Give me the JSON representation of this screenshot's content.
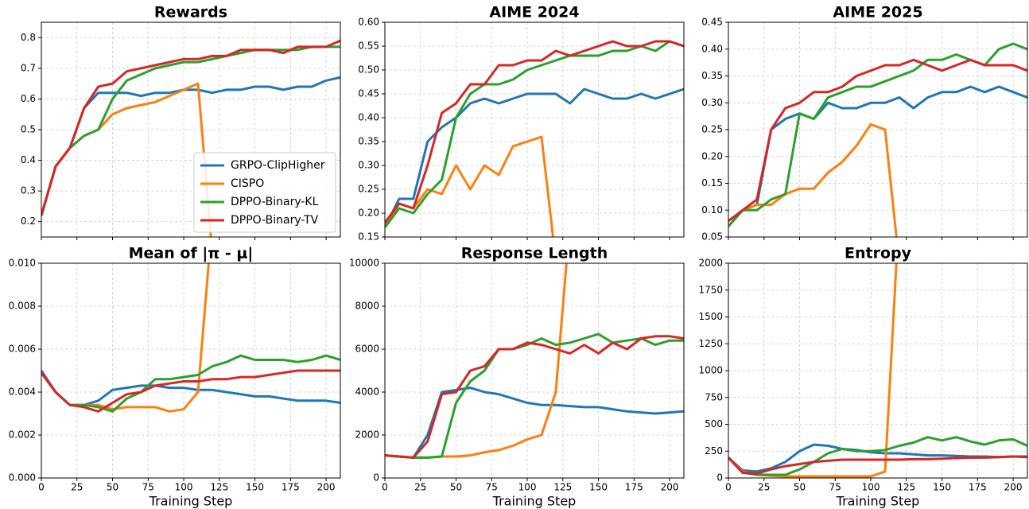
{
  "chart_data": [
    {
      "type": "line",
      "title": "Rewards",
      "xlabel_visible": false,
      "legend": "lower right",
      "x": [
        0,
        10,
        20,
        30,
        40,
        50,
        60,
        70,
        80,
        90,
        100,
        110,
        120,
        130,
        140,
        150,
        160,
        170,
        180,
        190,
        200,
        210
      ],
      "xlim": [
        0,
        210
      ],
      "xticks": [
        0,
        25,
        50,
        75,
        100,
        125,
        150,
        175,
        200
      ],
      "xtick_labels": false,
      "ylim": [
        0.15,
        0.85
      ],
      "yticks": [
        0.2,
        0.3,
        0.4,
        0.5,
        0.6,
        0.7,
        0.8
      ],
      "grid": true,
      "series": [
        {
          "name": "GRPO-ClipHigher",
          "color": "#1f77b4",
          "values": [
            0.22,
            0.38,
            0.44,
            0.57,
            0.62,
            0.62,
            0.62,
            0.61,
            0.62,
            0.62,
            0.63,
            0.63,
            0.62,
            0.63,
            0.63,
            0.64,
            0.64,
            0.63,
            0.64,
            0.64,
            0.66,
            0.67
          ]
        },
        {
          "name": "CISPO",
          "color": "#ff7f0e",
          "values": [
            0.22,
            0.38,
            0.44,
            0.48,
            0.5,
            0.55,
            0.57,
            0.58,
            0.59,
            0.61,
            0.63,
            0.65,
            0.1,
            null,
            null,
            null,
            null,
            null,
            null,
            null,
            null,
            null
          ]
        },
        {
          "name": "DPPO-Binary-KL",
          "color": "#2ca02c",
          "values": [
            0.22,
            0.38,
            0.44,
            0.48,
            0.5,
            0.6,
            0.66,
            0.68,
            0.7,
            0.71,
            0.72,
            0.72,
            0.73,
            0.74,
            0.75,
            0.76,
            0.76,
            0.76,
            0.76,
            0.77,
            0.77,
            0.77
          ]
        },
        {
          "name": "DPPO-Binary-TV",
          "color": "#d62728",
          "values": [
            0.22,
            0.38,
            0.44,
            0.57,
            0.64,
            0.65,
            0.69,
            0.7,
            0.71,
            0.72,
            0.73,
            0.73,
            0.74,
            0.74,
            0.76,
            0.76,
            0.76,
            0.75,
            0.77,
            0.77,
            0.77,
            0.79
          ]
        }
      ]
    },
    {
      "type": "line",
      "title": "AIME 2024",
      "x": [
        0,
        10,
        20,
        30,
        40,
        50,
        60,
        70,
        80,
        90,
        100,
        110,
        120,
        130,
        140,
        150,
        160,
        170,
        180,
        190,
        200,
        210
      ],
      "xlim": [
        0,
        210
      ],
      "xticks": [
        0,
        25,
        50,
        75,
        100,
        125,
        150,
        175,
        200
      ],
      "xtick_labels": false,
      "ylim": [
        0.15,
        0.6
      ],
      "yticks": [
        0.15,
        {
          "value": 0.2,
          "label": "0.20"
        },
        0.25,
        {
          "value": 0.3,
          "label": "0.30"
        },
        0.35,
        {
          "value": 0.4,
          "label": "0.40"
        },
        0.45,
        {
          "value": 0.5,
          "label": "0.50"
        },
        0.55,
        {
          "value": 0.6,
          "label": "0.60"
        }
      ],
      "grid": true,
      "series": [
        {
          "color": "#1f77b4",
          "values": [
            0.17,
            0.23,
            0.23,
            0.35,
            0.38,
            0.4,
            0.43,
            0.44,
            0.43,
            0.44,
            0.45,
            0.45,
            0.45,
            0.43,
            0.46,
            0.45,
            0.44,
            0.44,
            0.45,
            0.44,
            0.45,
            0.46
          ]
        },
        {
          "color": "#ff7f0e",
          "values": [
            0.17,
            0.22,
            0.21,
            0.25,
            0.24,
            0.3,
            0.25,
            0.3,
            0.28,
            0.34,
            0.35,
            0.36,
            0.1,
            null,
            null,
            null,
            null,
            null,
            null,
            null,
            null,
            null
          ]
        },
        {
          "color": "#2ca02c",
          "values": [
            0.17,
            0.21,
            0.2,
            0.24,
            0.27,
            0.4,
            0.45,
            0.47,
            0.47,
            0.48,
            0.5,
            0.51,
            0.52,
            0.53,
            0.53,
            0.53,
            0.54,
            0.54,
            0.55,
            0.54,
            0.56,
            0.55
          ]
        },
        {
          "color": "#d62728",
          "values": [
            0.18,
            0.22,
            0.21,
            0.3,
            0.41,
            0.43,
            0.47,
            0.47,
            0.51,
            0.51,
            0.52,
            0.52,
            0.54,
            0.53,
            0.54,
            0.55,
            0.56,
            0.55,
            0.55,
            0.56,
            0.56,
            0.55
          ]
        }
      ]
    },
    {
      "type": "line",
      "title": "AIME 2025",
      "x": [
        0,
        10,
        20,
        30,
        40,
        50,
        60,
        70,
        80,
        90,
        100,
        110,
        120,
        130,
        140,
        150,
        160,
        170,
        180,
        190,
        200,
        210
      ],
      "xlim": [
        0,
        210
      ],
      "xticks": [
        0,
        25,
        50,
        75,
        100,
        125,
        150,
        175,
        200
      ],
      "xtick_labels": false,
      "ylim": [
        0.05,
        0.45
      ],
      "yticks": [
        0.05,
        {
          "value": 0.1,
          "label": "0.10"
        },
        0.15,
        {
          "value": 0.2,
          "label": "0.20"
        },
        0.25,
        {
          "value": 0.3,
          "label": "0.30"
        },
        0.35,
        {
          "value": 0.4,
          "label": "0.40"
        },
        0.45
      ],
      "grid": true,
      "series": [
        {
          "color": "#1f77b4",
          "values": [
            0.07,
            0.1,
            0.11,
            0.25,
            0.27,
            0.28,
            0.27,
            0.3,
            0.29,
            0.29,
            0.3,
            0.3,
            0.31,
            0.29,
            0.31,
            0.32,
            0.32,
            0.33,
            0.32,
            0.33,
            0.32,
            0.31
          ]
        },
        {
          "color": "#ff7f0e",
          "values": [
            0.07,
            0.1,
            0.11,
            0.11,
            0.13,
            0.14,
            0.14,
            0.17,
            0.19,
            0.22,
            0.26,
            0.25,
            0.0,
            null,
            null,
            null,
            null,
            null,
            null,
            null,
            null,
            null
          ]
        },
        {
          "color": "#2ca02c",
          "values": [
            0.07,
            0.1,
            0.1,
            0.12,
            0.13,
            0.28,
            0.27,
            0.31,
            0.32,
            0.33,
            0.33,
            0.34,
            0.35,
            0.36,
            0.38,
            0.38,
            0.39,
            0.38,
            0.37,
            0.4,
            0.41,
            0.4
          ]
        },
        {
          "color": "#d62728",
          "values": [
            0.08,
            0.1,
            0.12,
            0.25,
            0.29,
            0.3,
            0.32,
            0.32,
            0.33,
            0.35,
            0.36,
            0.37,
            0.37,
            0.38,
            0.37,
            0.36,
            0.37,
            0.38,
            0.37,
            0.37,
            0.37,
            0.36
          ]
        }
      ]
    },
    {
      "type": "line",
      "title": "Mean of |π - μ|",
      "xlabel": "Training Step",
      "x": [
        0,
        10,
        20,
        30,
        40,
        50,
        60,
        70,
        80,
        90,
        100,
        110,
        120,
        130,
        140,
        150,
        160,
        170,
        180,
        190,
        200,
        210
      ],
      "xlim": [
        0,
        210
      ],
      "xticks": [
        0,
        25,
        50,
        75,
        100,
        125,
        150,
        175,
        200
      ],
      "xtick_labels": true,
      "ylim": [
        0,
        0.01
      ],
      "yticks": [
        {
          "value": 0,
          "label": "0.000"
        },
        {
          "value": 0.002,
          "label": "0.002"
        },
        {
          "value": 0.004,
          "label": "0.004"
        },
        {
          "value": 0.006,
          "label": "0.006"
        },
        {
          "value": 0.008,
          "label": "0.008"
        },
        {
          "value": 0.01,
          "label": "0.010"
        }
      ],
      "grid": true,
      "series": [
        {
          "color": "#1f77b4",
          "values": [
            0.005,
            0.004,
            0.0034,
            0.0034,
            0.0036,
            0.0041,
            0.0042,
            0.0043,
            0.0043,
            0.0042,
            0.0042,
            0.0041,
            0.0041,
            0.004,
            0.0039,
            0.0038,
            0.0038,
            0.0037,
            0.0036,
            0.0036,
            0.0036,
            0.0035
          ]
        },
        {
          "color": "#ff7f0e",
          "values": [
            0.0049,
            0.004,
            0.0034,
            0.0034,
            0.0034,
            0.0032,
            0.0033,
            0.0033,
            0.0033,
            0.0031,
            0.0032,
            0.004,
            0.012,
            null,
            null,
            null,
            null,
            null,
            null,
            null,
            null,
            null
          ]
        },
        {
          "color": "#2ca02c",
          "values": [
            0.0049,
            0.004,
            0.0034,
            0.0034,
            0.0033,
            0.0031,
            0.0037,
            0.004,
            0.0046,
            0.0046,
            0.0047,
            0.0048,
            0.0052,
            0.0054,
            0.0057,
            0.0055,
            0.0055,
            0.0055,
            0.0054,
            0.0055,
            0.0057,
            0.0055
          ]
        },
        {
          "color": "#d62728",
          "values": [
            0.0049,
            0.004,
            0.0034,
            0.0033,
            0.0031,
            0.0035,
            0.0039,
            0.004,
            0.0043,
            0.0044,
            0.0045,
            0.0045,
            0.0046,
            0.0046,
            0.0047,
            0.0047,
            0.0048,
            0.0049,
            0.005,
            0.005,
            0.005,
            0.005
          ]
        }
      ]
    },
    {
      "type": "line",
      "title": "Response Length",
      "xlabel": "Training Step",
      "x": [
        0,
        10,
        20,
        30,
        40,
        50,
        60,
        70,
        80,
        90,
        100,
        110,
        120,
        130,
        140,
        150,
        160,
        170,
        180,
        190,
        200,
        210
      ],
      "xlim": [
        0,
        210
      ],
      "xticks": [
        0,
        25,
        50,
        75,
        100,
        125,
        150,
        175,
        200
      ],
      "xtick_labels": true,
      "ylim": [
        0,
        10000
      ],
      "yticks": [
        0,
        2000,
        4000,
        6000,
        8000,
        10000
      ],
      "grid": true,
      "series": [
        {
          "color": "#1f77b4",
          "values": [
            1050,
            1000,
            950,
            2000,
            4000,
            4100,
            4200,
            4000,
            3900,
            3700,
            3500,
            3400,
            3400,
            3350,
            3300,
            3300,
            3200,
            3100,
            3050,
            3000,
            3050,
            3100
          ]
        },
        {
          "color": "#ff7f0e",
          "values": [
            1050,
            1000,
            950,
            950,
            1000,
            1000,
            1050,
            1200,
            1300,
            1500,
            1800,
            2000,
            4000,
            12000,
            null,
            null,
            null,
            null,
            null,
            null,
            null,
            null
          ]
        },
        {
          "color": "#2ca02c",
          "values": [
            1050,
            1000,
            950,
            950,
            1000,
            3500,
            4500,
            5000,
            6000,
            6000,
            6200,
            6500,
            6200,
            6300,
            6500,
            6700,
            6300,
            6400,
            6500,
            6200,
            6400,
            6400
          ]
        },
        {
          "color": "#d62728",
          "values": [
            1050,
            1000,
            950,
            1700,
            3900,
            4000,
            5000,
            5200,
            6000,
            6000,
            6300,
            6200,
            6000,
            5800,
            6200,
            5800,
            6300,
            6000,
            6500,
            6600,
            6600,
            6500
          ]
        }
      ]
    },
    {
      "type": "line",
      "title": "Entropy",
      "xlabel": "Training Step",
      "x": [
        0,
        10,
        20,
        30,
        40,
        50,
        60,
        70,
        80,
        90,
        100,
        110,
        120,
        130,
        140,
        150,
        160,
        170,
        180,
        190,
        200,
        210
      ],
      "xlim": [
        0,
        210
      ],
      "xticks": [
        0,
        25,
        50,
        75,
        100,
        125,
        150,
        175,
        200
      ],
      "xtick_labels": true,
      "ylim": [
        0,
        2000
      ],
      "yticks": [
        0,
        250,
        500,
        750,
        1000,
        1250,
        1500,
        1750,
        2000
      ],
      "grid": true,
      "series": [
        {
          "color": "#1f77b4",
          "values": [
            190,
            70,
            60,
            90,
            150,
            250,
            310,
            300,
            270,
            260,
            240,
            230,
            230,
            220,
            210,
            210,
            205,
            200,
            200,
            195,
            200,
            200
          ]
        },
        {
          "color": "#ff7f0e",
          "values": [
            190,
            60,
            30,
            20,
            15,
            15,
            15,
            15,
            15,
            15,
            15,
            60,
            2500,
            null,
            null,
            null,
            null,
            null,
            null,
            null,
            null,
            null
          ]
        },
        {
          "color": "#2ca02c",
          "values": [
            190,
            50,
            30,
            30,
            30,
            80,
            150,
            230,
            270,
            250,
            250,
            260,
            300,
            330,
            380,
            350,
            380,
            340,
            310,
            350,
            360,
            300
          ]
        },
        {
          "color": "#d62728",
          "values": [
            190,
            50,
            40,
            80,
            110,
            130,
            150,
            160,
            170,
            170,
            170,
            170,
            170,
            175,
            175,
            180,
            185,
            190,
            190,
            195,
            200,
            195
          ]
        }
      ]
    }
  ]
}
